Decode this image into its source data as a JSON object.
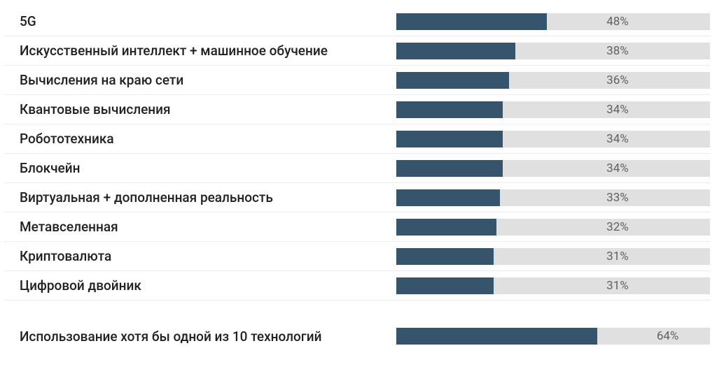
{
  "chart": {
    "type": "bar",
    "bar_fill_color": "#36546b",
    "bar_track_color": "#e0e0e0",
    "background_color": "#ffffff",
    "label_color": "#212121",
    "value_color": "#616161",
    "divider_color": "#ececec",
    "label_fontsize": 19,
    "value_fontsize": 17,
    "xlim": [
      0,
      100
    ],
    "value_label_position_pct": 67,
    "summary_value_label_position_pct": 83,
    "rows": [
      {
        "label": "5G",
        "value": 48,
        "display": "48%"
      },
      {
        "label": "Искусственный интеллект + машинное обучение",
        "value": 38,
        "display": "38%"
      },
      {
        "label": "Вычисления на краю сети",
        "value": 36,
        "display": "36%"
      },
      {
        "label": "Квантовые вычисления",
        "value": 34,
        "display": "34%"
      },
      {
        "label": "Робототехника",
        "value": 34,
        "display": "34%"
      },
      {
        "label": "Блокчейн",
        "value": 34,
        "display": "34%"
      },
      {
        "label": "Виртуальная + дополненная реальность",
        "value": 33,
        "display": "33%"
      },
      {
        "label": "Метавселенная",
        "value": 32,
        "display": "32%"
      },
      {
        "label": "Криптовалюта",
        "value": 31,
        "display": "31%"
      },
      {
        "label": "Цифровой двойник",
        "value": 31,
        "display": "31%"
      }
    ],
    "summary": {
      "label": "Использование хотя бы одной из 10 технологий",
      "value": 64,
      "display": "64%"
    }
  }
}
